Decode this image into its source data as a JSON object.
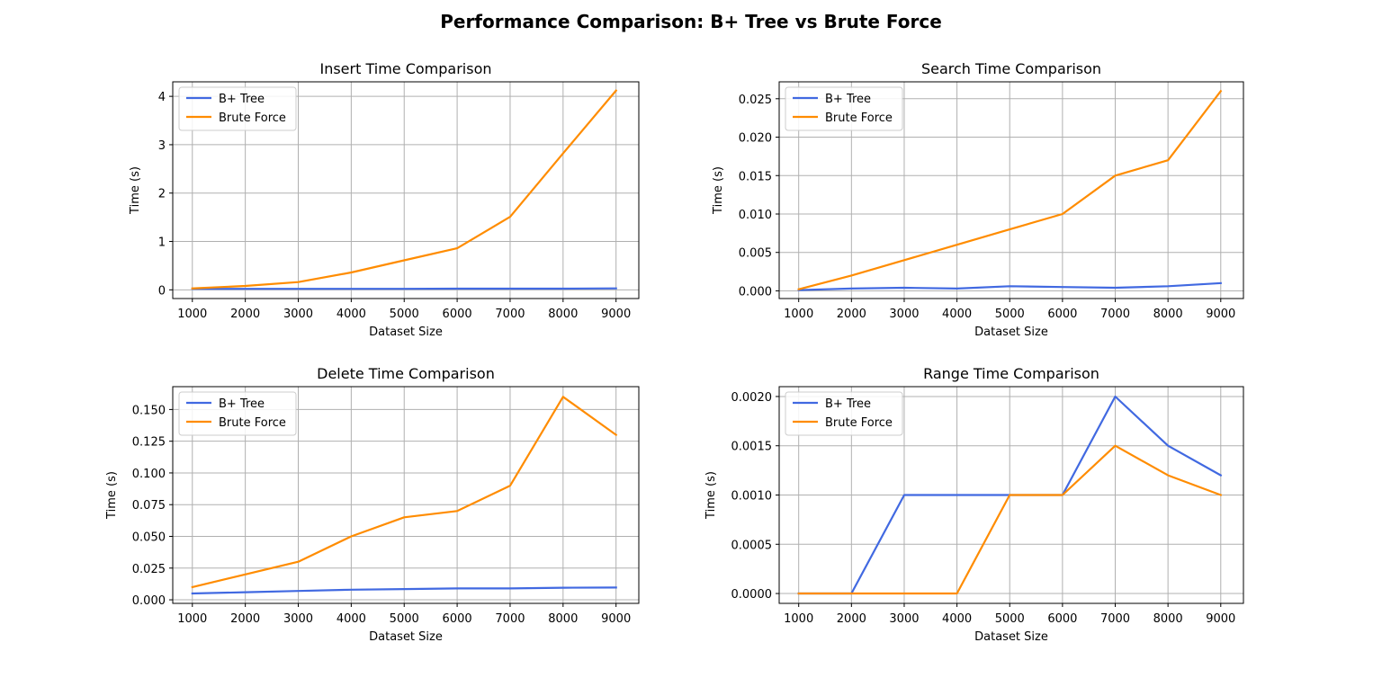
{
  "figure_title": "Performance Comparison: B+ Tree vs Brute Force",
  "colors": {
    "bplus": "#4169E1",
    "brute": "#FF8C00",
    "grid": "#b0b0b0"
  },
  "chart_data": [
    {
      "type": "line",
      "title": "Insert Time Comparison",
      "xlabel": "Dataset Size",
      "ylabel": "Time (s)",
      "x": [
        1000,
        2000,
        3000,
        4000,
        5000,
        6000,
        7000,
        8000,
        9000
      ],
      "xlim": [
        630,
        9430
      ],
      "ylim": [
        -0.18,
        4.3
      ],
      "yticks": [
        "0",
        "1",
        "2",
        "3",
        "4"
      ],
      "ytick_values": [
        0,
        1,
        2,
        3,
        4
      ],
      "grid": true,
      "legend_position": "upper-left",
      "series": [
        {
          "name": "B+ Tree",
          "color": "#4169E1",
          "values": [
            0.02,
            0.02,
            0.02,
            0.02,
            0.02,
            0.025,
            0.025,
            0.025,
            0.03
          ]
        },
        {
          "name": "Brute Force",
          "color": "#FF8C00",
          "values": [
            0.03,
            0.08,
            0.16,
            0.36,
            0.61,
            0.86,
            1.51,
            2.82,
            4.12
          ]
        }
      ]
    },
    {
      "type": "line",
      "title": "Search Time Comparison",
      "xlabel": "Dataset Size",
      "ylabel": "Time (s)",
      "x": [
        1000,
        2000,
        3000,
        4000,
        5000,
        6000,
        7000,
        8000,
        9000
      ],
      "xlim": [
        630,
        9430
      ],
      "ylim": [
        -0.001,
        0.0272
      ],
      "yticks": [
        "0.000",
        "0.005",
        "0.010",
        "0.015",
        "0.020",
        "0.025"
      ],
      "ytick_values": [
        0,
        0.005,
        0.01,
        0.015,
        0.02,
        0.025
      ],
      "grid": true,
      "legend_position": "upper-left",
      "series": [
        {
          "name": "B+ Tree",
          "color": "#4169E1",
          "values": [
            0.0001,
            0.0003,
            0.0004,
            0.0003,
            0.0006,
            0.0005,
            0.0004,
            0.0006,
            0.001
          ]
        },
        {
          "name": "Brute Force",
          "color": "#FF8C00",
          "values": [
            0.0002,
            0.002,
            0.004,
            0.006,
            0.008,
            0.01,
            0.015,
            0.017,
            0.026
          ]
        }
      ]
    },
    {
      "type": "line",
      "title": "Delete Time Comparison",
      "xlabel": "Dataset Size",
      "ylabel": "Time (s)",
      "x": [
        1000,
        2000,
        3000,
        4000,
        5000,
        6000,
        7000,
        8000,
        9000
      ],
      "xlim": [
        630,
        9430
      ],
      "ylim": [
        -0.0028,
        0.168
      ],
      "yticks": [
        "0.000",
        "0.025",
        "0.050",
        "0.075",
        "0.100",
        "0.125",
        "0.150"
      ],
      "ytick_values": [
        0,
        0.025,
        0.05,
        0.075,
        0.1,
        0.125,
        0.15
      ],
      "grid": true,
      "legend_position": "upper-left",
      "series": [
        {
          "name": "B+ Tree",
          "color": "#4169E1",
          "values": [
            0.005,
            0.006,
            0.007,
            0.008,
            0.0085,
            0.009,
            0.009,
            0.0095,
            0.0097
          ]
        },
        {
          "name": "Brute Force",
          "color": "#FF8C00",
          "values": [
            0.01,
            0.02,
            0.03,
            0.05,
            0.065,
            0.07,
            0.09,
            0.16,
            0.13
          ]
        }
      ]
    },
    {
      "type": "line",
      "title": "Range Time Comparison",
      "xlabel": "Dataset Size",
      "ylabel": "Time (s)",
      "x": [
        1000,
        2000,
        3000,
        4000,
        5000,
        6000,
        7000,
        8000,
        9000
      ],
      "xlim": [
        630,
        9430
      ],
      "ylim": [
        -0.0001,
        0.0021
      ],
      "yticks": [
        "0.0000",
        "0.0005",
        "0.0010",
        "0.0015",
        "0.0020"
      ],
      "ytick_values": [
        0,
        0.0005,
        0.001,
        0.0015,
        0.002
      ],
      "grid": true,
      "legend_position": "upper-left",
      "series": [
        {
          "name": "B+ Tree",
          "color": "#4169E1",
          "values": [
            0.0,
            0.0,
            0.001,
            0.001,
            0.001,
            0.001,
            0.002,
            0.0015,
            0.0012
          ]
        },
        {
          "name": "Brute Force",
          "color": "#FF8C00",
          "values": [
            0.0,
            0.0,
            0.0,
            0.0,
            0.001,
            0.001,
            0.0015,
            0.0012,
            0.001
          ]
        }
      ]
    }
  ]
}
